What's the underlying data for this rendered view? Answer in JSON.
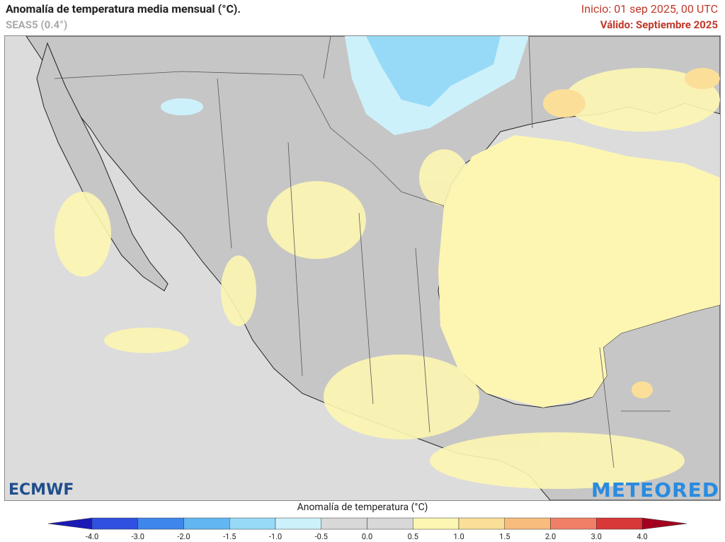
{
  "header": {
    "title": "Anomalía de temperatura media mensual (°C).",
    "subtitle": "SEAS5 (0.4°)",
    "init": "Inicio: 01 sep 2025, 00 UTC",
    "valid": "Válido: Septiembre 2025"
  },
  "logos": {
    "left": "ECMWF",
    "right": "METEORED"
  },
  "legend": {
    "title": "Anomalía de temperatura (°C)",
    "ticks": [
      "-4.0",
      "-3.0",
      "-2.0",
      "-1.5",
      "-1.0",
      "-0.5",
      "0.0",
      "0.5",
      "1.0",
      "1.5",
      "2.0",
      "3.0",
      "4.0"
    ],
    "colors": [
      "#2f50e0",
      "#3f86ec",
      "#62b7f3",
      "#97daf7",
      "#cdf1fb",
      "#d8d8d8",
      "#d8d8d8",
      "#fdf6b2",
      "#fbdf98",
      "#f8bc7c",
      "#f07f67",
      "#d83838"
    ],
    "low_color": "#1a1ab5",
    "high_color": "#a3001f"
  }
}
